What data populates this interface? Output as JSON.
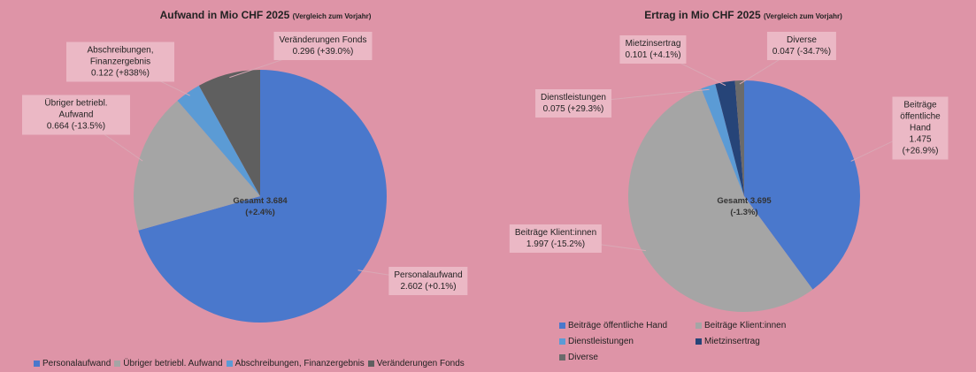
{
  "chart_data": [
    {
      "type": "pie",
      "title": "Aufwand in Mio CHF 2025",
      "subtitle": "(Vergleich zum Vorjahr)",
      "categories": [
        "Personalaufwand",
        "Übriger betriebl. Aufwand",
        "Abschreibungen, Finanzergebnis",
        "Veränderungen Fonds"
      ],
      "values": [
        2.602,
        0.664,
        0.122,
        0.296
      ],
      "value_labels": [
        "2.602 (+0.1%)",
        "0.664 (-13.5%)",
        "0.122 (+838%)",
        "0.296 (+39.0%)"
      ],
      "colors": [
        "#4a78cc",
        "#a5a5a5",
        "#5b9bd5",
        "#5f5f5f"
      ],
      "center_label": "Gesamt 3.684",
      "center_sublabel": "(+2.4%)",
      "legend": "bottom"
    },
    {
      "type": "pie",
      "title": "Ertrag in Mio CHF 2025",
      "subtitle": "(Vergleich zum Vorjahr)",
      "categories": [
        "Beiträge öffentliche Hand",
        "Beiträge Klient:innen",
        "Dienstleistungen",
        "Mietzinsertrag",
        "Diverse"
      ],
      "values": [
        1.475,
        1.997,
        0.075,
        0.101,
        0.047
      ],
      "value_labels": [
        "1.475 (+26.9%)",
        "1.997 (-15.2%)",
        "0.075 (+29.3%)",
        "0.101 (+4.1%)",
        "0.047 (-34.7%)"
      ],
      "colors": [
        "#4a78cc",
        "#a5a5a5",
        "#5b9bd5",
        "#264478",
        "#6b6b6b"
      ],
      "center_label": "Gesamt 3.695",
      "center_sublabel": "(-1.3%)",
      "legend": "bottom"
    }
  ]
}
